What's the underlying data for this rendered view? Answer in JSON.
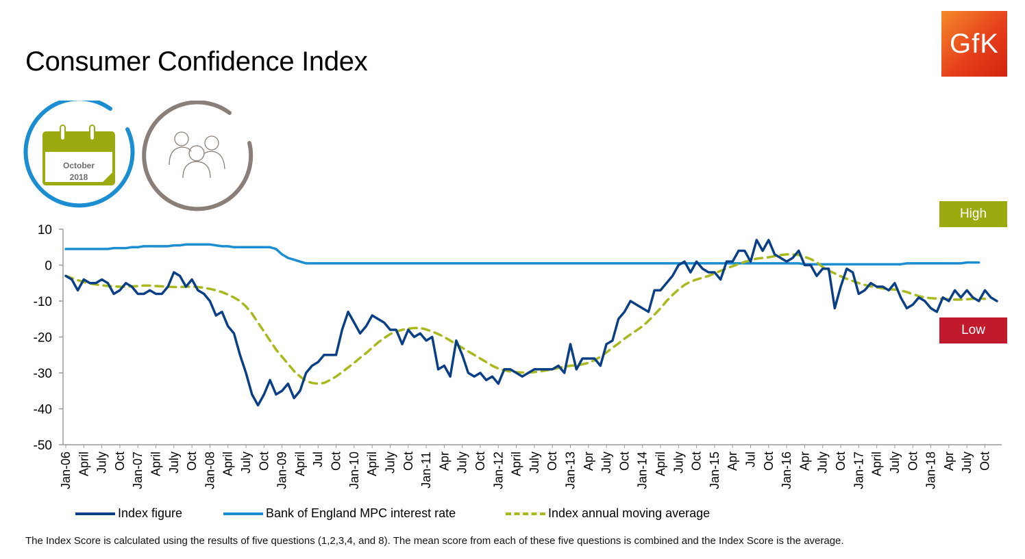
{
  "title": "Consumer Confidence Index",
  "logo_text": "GfK",
  "calendar": {
    "month": "October",
    "year": "2018"
  },
  "badges": {
    "high": "High",
    "low": "Low"
  },
  "colors": {
    "index": "#0a3f85",
    "interest": "#1a8ed1",
    "moving_avg": "#a9b81c",
    "high": "#9aaa0f",
    "low": "#c01a2c",
    "calendar_ring": "#1a8ed1",
    "people_ring": "#8a7f78"
  },
  "footnote": "The Index Score is calculated using the results of five questions (1,2,3,4, and 8). The mean score from each of these five questions is combined and the Index Score is the average.",
  "chart_data": {
    "type": "line",
    "x_tick_labels": [
      "Jan-06",
      "April",
      "July",
      "Oct",
      "Jan-07",
      "April",
      "July",
      "Oct",
      "Jan-08",
      "April",
      "July",
      "Oct",
      "Jan-09",
      "April",
      "Jul",
      "Oct",
      "Jan-10",
      "April",
      "July",
      "Oct",
      "Jan-11",
      "Apr",
      "July",
      "Oct",
      "Jan-12",
      "April",
      "July",
      "Oct",
      "Jan-13",
      "Apr",
      "July",
      "Oct",
      "Jan-14",
      "April",
      "July",
      "Oct",
      "Jan-15",
      "Apr",
      "Jul",
      "Oct",
      "Jan-16",
      "Apr",
      "July",
      "Oct",
      "Jan-17",
      "April",
      "July",
      "Oct",
      "Jan-18",
      "Apr",
      "July",
      "Oct"
    ],
    "y_ticks": [
      10,
      0,
      -10,
      -20,
      -30,
      -40,
      -50
    ],
    "ylim": [
      -50,
      10
    ],
    "x_start": "Jan-06",
    "x_end": "Oct-18",
    "legend_position": "bottom",
    "series": [
      {
        "name": "Index figure",
        "style": "solid",
        "values": [
          -3,
          -4,
          -7,
          -4,
          -5,
          -5,
          -4,
          -5,
          -8,
          -7,
          -5,
          -6,
          -8,
          -8,
          -7,
          -8,
          -8,
          -6,
          -2,
          -3,
          -6,
          -4,
          -7,
          -8,
          -10,
          -14,
          -13,
          -17,
          -19,
          -25,
          -30,
          -36,
          -39,
          -36,
          -32,
          -36,
          -35,
          -33,
          -37,
          -35,
          -30,
          -28,
          -27,
          -25,
          -25,
          -25,
          -18,
          -13,
          -16,
          -19,
          -17,
          -14,
          -15,
          -16,
          -18,
          -18,
          -22,
          -18,
          -20,
          -19,
          -21,
          -20,
          -29,
          -28,
          -31,
          -21,
          -25,
          -30,
          -31,
          -30,
          -32,
          -31,
          -33,
          -29,
          -29,
          -30,
          -31,
          -30,
          -29,
          -29,
          -29,
          -29,
          -28,
          -30,
          -22,
          -29,
          -26,
          -26,
          -26,
          -28,
          -22,
          -21,
          -15,
          -13,
          -10,
          -11,
          -12,
          -13,
          -7,
          -7,
          -5,
          -3,
          0,
          1,
          -2,
          1,
          -1,
          -2,
          -2,
          -4,
          1,
          1,
          4,
          4,
          1,
          7,
          4,
          7,
          3,
          2,
          1,
          2,
          4,
          0,
          0,
          -3,
          -1,
          -1,
          -12,
          -6,
          -1,
          -2,
          -8,
          -7,
          -5,
          -6,
          -6,
          -7,
          -5,
          -9,
          -12,
          -11,
          -9,
          -10,
          -12,
          -13,
          -9,
          -10,
          -7,
          -9,
          -7,
          -9,
          -10,
          -7,
          -9,
          -10
        ]
      },
      {
        "name": "Bank of England MPC interest rate",
        "style": "solid",
        "values": [
          4.5,
          4.5,
          4.5,
          4.5,
          4.5,
          4.5,
          4.5,
          4.5,
          4.75,
          4.75,
          4.75,
          5.0,
          5.0,
          5.25,
          5.25,
          5.25,
          5.25,
          5.25,
          5.5,
          5.5,
          5.75,
          5.75,
          5.75,
          5.75,
          5.75,
          5.5,
          5.25,
          5.25,
          5.0,
          5.0,
          5.0,
          5.0,
          5.0,
          5.0,
          5.0,
          4.5,
          3.0,
          2.0,
          1.5,
          1.0,
          0.5,
          0.5,
          0.5,
          0.5,
          0.5,
          0.5,
          0.5,
          0.5,
          0.5,
          0.5,
          0.5,
          0.5,
          0.5,
          0.5,
          0.5,
          0.5,
          0.5,
          0.5,
          0.5,
          0.5,
          0.5,
          0.5,
          0.5,
          0.5,
          0.5,
          0.5,
          0.5,
          0.5,
          0.5,
          0.5,
          0.5,
          0.5,
          0.5,
          0.5,
          0.5,
          0.5,
          0.5,
          0.5,
          0.5,
          0.5,
          0.5,
          0.5,
          0.5,
          0.5,
          0.5,
          0.5,
          0.5,
          0.5,
          0.5,
          0.5,
          0.5,
          0.5,
          0.5,
          0.5,
          0.5,
          0.5,
          0.5,
          0.5,
          0.5,
          0.5,
          0.5,
          0.5,
          0.5,
          0.5,
          0.5,
          0.5,
          0.5,
          0.5,
          0.5,
          0.5,
          0.5,
          0.5,
          0.5,
          0.5,
          0.5,
          0.5,
          0.5,
          0.5,
          0.5,
          0.5,
          0.5,
          0.5,
          0.5,
          0.25,
          0.25,
          0.25,
          0.25,
          0.25,
          0.25,
          0.25,
          0.25,
          0.25,
          0.25,
          0.25,
          0.25,
          0.25,
          0.25,
          0.25,
          0.25,
          0.25,
          0.5,
          0.5,
          0.5,
          0.5,
          0.5,
          0.5,
          0.5,
          0.5,
          0.5,
          0.5,
          0.75,
          0.75,
          0.75
        ]
      },
      {
        "name": "Index annual moving average",
        "style": "dashed",
        "values": [
          -3,
          -3.6,
          -4.2,
          -4.7,
          -5.1,
          -5.4,
          -5.6,
          -5.8,
          -5.9,
          -6,
          -6,
          -5.9,
          -5.8,
          -5.7,
          -5.7,
          -5.8,
          -5.9,
          -6,
          -6.1,
          -6.1,
          -6,
          -6,
          -6.1,
          -6.3,
          -6.6,
          -7,
          -7.5,
          -8.2,
          -9,
          -10,
          -11.5,
          -13.5,
          -16,
          -18.5,
          -21,
          -23.5,
          -25.5,
          -27.5,
          -29.5,
          -31,
          -32.2,
          -32.8,
          -33,
          -32.8,
          -32,
          -31,
          -29.8,
          -28.5,
          -27.2,
          -25.8,
          -24.5,
          -23,
          -21.5,
          -20.3,
          -19.2,
          -18.5,
          -18,
          -17.7,
          -17.5,
          -17.5,
          -17.9,
          -18.5,
          -19.2,
          -20,
          -21,
          -22,
          -23,
          -24,
          -25,
          -26,
          -27,
          -28,
          -28.8,
          -29.3,
          -29.6,
          -29.8,
          -29.9,
          -29.9,
          -29.8,
          -29.6,
          -29.3,
          -29,
          -28.6,
          -28.3,
          -28,
          -27.9,
          -27.6,
          -27.2,
          -26.5,
          -25.5,
          -24.3,
          -23,
          -21.8,
          -20.5,
          -19.3,
          -18.2,
          -17,
          -15.5,
          -13.8,
          -12,
          -10,
          -8.3,
          -6.8,
          -5.5,
          -4.6,
          -4,
          -3.5,
          -3,
          -2.3,
          -1.6,
          -0.9,
          -0.3,
          0.3,
          0.9,
          1.4,
          1.8,
          2,
          2.2,
          2.5,
          2.8,
          3,
          3,
          2.8,
          2.3,
          1.7,
          0.8,
          -0.5,
          -1.5,
          -2.3,
          -3.1,
          -3.8,
          -4.4,
          -5,
          -5.5,
          -5.9,
          -6.2,
          -6.5,
          -6.7,
          -6.8,
          -7,
          -7.5,
          -8.1,
          -8.6,
          -9,
          -9.2,
          -9.3,
          -9.4,
          -9.5,
          -9.6,
          -9.6,
          -9.5,
          -9.4,
          -9.3,
          -9.4
        ]
      }
    ]
  }
}
